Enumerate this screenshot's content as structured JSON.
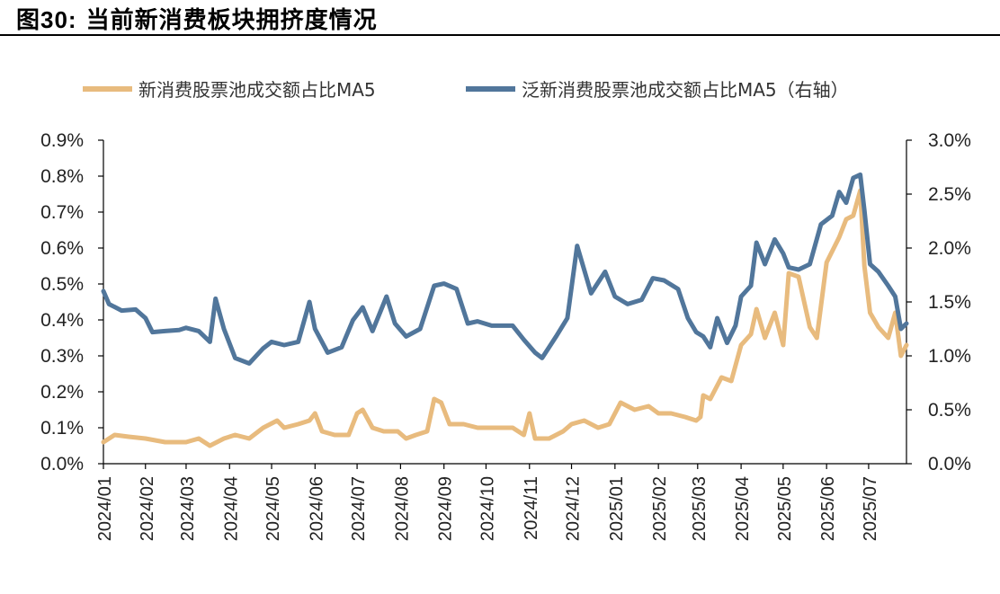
{
  "figure": {
    "label": "图30:",
    "title": "当前新消费板块拥挤度情况"
  },
  "chart_data": {
    "type": "line",
    "x_axis": {
      "type": "date",
      "range": [
        "2024-01-02",
        "2025-07-28"
      ],
      "ticks": [
        "2024/01",
        "2024/02",
        "2024/03",
        "2024/04",
        "2024/05",
        "2024/06",
        "2024/07",
        "2024/08",
        "2024/09",
        "2024/10",
        "2024/11",
        "2024/12",
        "2025/01",
        "2025/02",
        "2025/03",
        "2025/04",
        "2025/05",
        "2025/06",
        "2025/07"
      ]
    },
    "y_left": {
      "min": 0,
      "max": 0.009,
      "ticks": [
        "0.0%",
        "0.1%",
        "0.2%",
        "0.3%",
        "0.4%",
        "0.5%",
        "0.6%",
        "0.7%",
        "0.8%",
        "0.9%"
      ]
    },
    "y_right": {
      "min": 0,
      "max": 0.03,
      "ticks": [
        "0.0%",
        "0.5%",
        "1.0%",
        "1.5%",
        "2.0%",
        "2.5%",
        "3.0%"
      ]
    },
    "legend_position": "top",
    "grid": false,
    "series": [
      {
        "name": "新消费股票池成交额占比MA5",
        "axis": "left",
        "color": "#E8BB7E",
        "points": [
          [
            "2024-01-02",
            0.0006
          ],
          [
            "2024-01-10",
            0.0008
          ],
          [
            "2024-01-20",
            0.00075
          ],
          [
            "2024-02-01",
            0.0007
          ],
          [
            "2024-02-15",
            0.0006
          ],
          [
            "2024-03-01",
            0.0006
          ],
          [
            "2024-03-10",
            0.0007
          ],
          [
            "2024-03-18",
            0.0005
          ],
          [
            "2024-03-28",
            0.0007
          ],
          [
            "2024-04-05",
            0.0008
          ],
          [
            "2024-04-15",
            0.0007
          ],
          [
            "2024-04-25",
            0.001
          ],
          [
            "2024-05-05",
            0.0012
          ],
          [
            "2024-05-10",
            0.001
          ],
          [
            "2024-05-20",
            0.0011
          ],
          [
            "2024-05-28",
            0.0012
          ],
          [
            "2024-06-01",
            0.0014
          ],
          [
            "2024-06-06",
            0.0009
          ],
          [
            "2024-06-15",
            0.0008
          ],
          [
            "2024-06-25",
            0.0008
          ],
          [
            "2024-07-01",
            0.0014
          ],
          [
            "2024-07-05",
            0.0015
          ],
          [
            "2024-07-12",
            0.001
          ],
          [
            "2024-07-20",
            0.0009
          ],
          [
            "2024-07-30",
            0.0009
          ],
          [
            "2024-08-05",
            0.0007
          ],
          [
            "2024-08-12",
            0.0008
          ],
          [
            "2024-08-20",
            0.0009
          ],
          [
            "2024-08-25",
            0.0018
          ],
          [
            "2024-08-30",
            0.0017
          ],
          [
            "2024-09-05",
            0.0011
          ],
          [
            "2024-09-15",
            0.0011
          ],
          [
            "2024-09-25",
            0.001
          ],
          [
            "2024-10-05",
            0.001
          ],
          [
            "2024-10-20",
            0.001
          ],
          [
            "2024-10-28",
            0.0008
          ],
          [
            "2024-11-01",
            0.0014
          ],
          [
            "2024-11-05",
            0.0007
          ],
          [
            "2024-11-15",
            0.0007
          ],
          [
            "2024-11-25",
            0.0009
          ],
          [
            "2024-12-01",
            0.0011
          ],
          [
            "2024-12-10",
            0.0012
          ],
          [
            "2024-12-20",
            0.001
          ],
          [
            "2024-12-28",
            0.0011
          ],
          [
            "2025-01-05",
            0.0017
          ],
          [
            "2025-01-15",
            0.0015
          ],
          [
            "2025-01-25",
            0.0016
          ],
          [
            "2025-02-01",
            0.0014
          ],
          [
            "2025-02-10",
            0.0014
          ],
          [
            "2025-02-20",
            0.0013
          ],
          [
            "2025-02-28",
            0.0012
          ],
          [
            "2025-03-03",
            0.0013
          ],
          [
            "2025-03-05",
            0.0019
          ],
          [
            "2025-03-10",
            0.0018
          ],
          [
            "2025-03-18",
            0.0024
          ],
          [
            "2025-03-25",
            0.0023
          ],
          [
            "2025-04-01",
            0.0033
          ],
          [
            "2025-04-08",
            0.0036
          ],
          [
            "2025-04-12",
            0.0043
          ],
          [
            "2025-04-18",
            0.0035
          ],
          [
            "2025-04-25",
            0.0042
          ],
          [
            "2025-05-01",
            0.0033
          ],
          [
            "2025-05-05",
            0.0053
          ],
          [
            "2025-05-12",
            0.0052
          ],
          [
            "2025-05-20",
            0.0038
          ],
          [
            "2025-05-25",
            0.0035
          ],
          [
            "2025-06-01",
            0.0056
          ],
          [
            "2025-06-10",
            0.0063
          ],
          [
            "2025-06-15",
            0.0068
          ],
          [
            "2025-06-20",
            0.0069
          ],
          [
            "2025-06-25",
            0.0076
          ],
          [
            "2025-06-28",
            0.0055
          ],
          [
            "2025-07-02",
            0.0042
          ],
          [
            "2025-07-08",
            0.0038
          ],
          [
            "2025-07-15",
            0.0035
          ],
          [
            "2025-07-20",
            0.0042
          ],
          [
            "2025-07-24",
            0.003
          ],
          [
            "2025-07-28",
            0.0033
          ]
        ]
      },
      {
        "name": "泛新消费股票池成交额占比MA5（右轴）",
        "axis": "right",
        "color": "#51769B",
        "points": [
          [
            "2024-01-02",
            0.016
          ],
          [
            "2024-01-06",
            0.0148
          ],
          [
            "2024-01-15",
            0.0142
          ],
          [
            "2024-01-25",
            0.0143
          ],
          [
            "2024-02-01",
            0.0135
          ],
          [
            "2024-02-06",
            0.0122
          ],
          [
            "2024-02-15",
            0.0123
          ],
          [
            "2024-02-25",
            0.0124
          ],
          [
            "2024-03-01",
            0.0126
          ],
          [
            "2024-03-10",
            0.0123
          ],
          [
            "2024-03-18",
            0.0113
          ],
          [
            "2024-03-22",
            0.0153
          ],
          [
            "2024-03-28",
            0.0125
          ],
          [
            "2024-04-05",
            0.0098
          ],
          [
            "2024-04-15",
            0.0093
          ],
          [
            "2024-04-25",
            0.0107
          ],
          [
            "2024-05-01",
            0.0113
          ],
          [
            "2024-05-10",
            0.011
          ],
          [
            "2024-05-20",
            0.0113
          ],
          [
            "2024-05-28",
            0.015
          ],
          [
            "2024-06-01",
            0.0125
          ],
          [
            "2024-06-10",
            0.0103
          ],
          [
            "2024-06-20",
            0.0108
          ],
          [
            "2024-06-28",
            0.0133
          ],
          [
            "2024-07-05",
            0.0145
          ],
          [
            "2024-07-12",
            0.0123
          ],
          [
            "2024-07-22",
            0.0155
          ],
          [
            "2024-07-28",
            0.013
          ],
          [
            "2024-08-05",
            0.0118
          ],
          [
            "2024-08-15",
            0.0125
          ],
          [
            "2024-08-25",
            0.0165
          ],
          [
            "2024-09-01",
            0.0167
          ],
          [
            "2024-09-10",
            0.0162
          ],
          [
            "2024-09-18",
            0.013
          ],
          [
            "2024-09-25",
            0.0132
          ],
          [
            "2024-10-05",
            0.0128
          ],
          [
            "2024-10-20",
            0.0128
          ],
          [
            "2024-10-28",
            0.0115
          ],
          [
            "2024-11-05",
            0.0103
          ],
          [
            "2024-11-10",
            0.0098
          ],
          [
            "2024-11-20",
            0.0118
          ],
          [
            "2024-11-28",
            0.0135
          ],
          [
            "2024-12-05",
            0.0202
          ],
          [
            "2024-12-15",
            0.0158
          ],
          [
            "2024-12-25",
            0.0178
          ],
          [
            "2025-01-01",
            0.0155
          ],
          [
            "2025-01-10",
            0.0148
          ],
          [
            "2025-01-20",
            0.0152
          ],
          [
            "2025-01-28",
            0.0172
          ],
          [
            "2025-02-05",
            0.017
          ],
          [
            "2025-02-15",
            0.0162
          ],
          [
            "2025-02-22",
            0.0135
          ],
          [
            "2025-02-28",
            0.0122
          ],
          [
            "2025-03-05",
            0.0118
          ],
          [
            "2025-03-10",
            0.0108
          ],
          [
            "2025-03-15",
            0.0135
          ],
          [
            "2025-03-22",
            0.0112
          ],
          [
            "2025-03-28",
            0.0128
          ],
          [
            "2025-04-01",
            0.0155
          ],
          [
            "2025-04-08",
            0.0165
          ],
          [
            "2025-04-12",
            0.0205
          ],
          [
            "2025-04-18",
            0.0185
          ],
          [
            "2025-04-25",
            0.0208
          ],
          [
            "2025-05-01",
            0.0195
          ],
          [
            "2025-05-05",
            0.0182
          ],
          [
            "2025-05-12",
            0.018
          ],
          [
            "2025-05-20",
            0.0185
          ],
          [
            "2025-05-28",
            0.0222
          ],
          [
            "2025-06-05",
            0.023
          ],
          [
            "2025-06-10",
            0.0252
          ],
          [
            "2025-06-15",
            0.0242
          ],
          [
            "2025-06-20",
            0.0265
          ],
          [
            "2025-06-25",
            0.0268
          ],
          [
            "2025-06-28",
            0.0235
          ],
          [
            "2025-07-02",
            0.0185
          ],
          [
            "2025-07-08",
            0.0178
          ],
          [
            "2025-07-15",
            0.0165
          ],
          [
            "2025-07-20",
            0.0155
          ],
          [
            "2025-07-24",
            0.0125
          ],
          [
            "2025-07-28",
            0.013
          ]
        ]
      }
    ]
  }
}
